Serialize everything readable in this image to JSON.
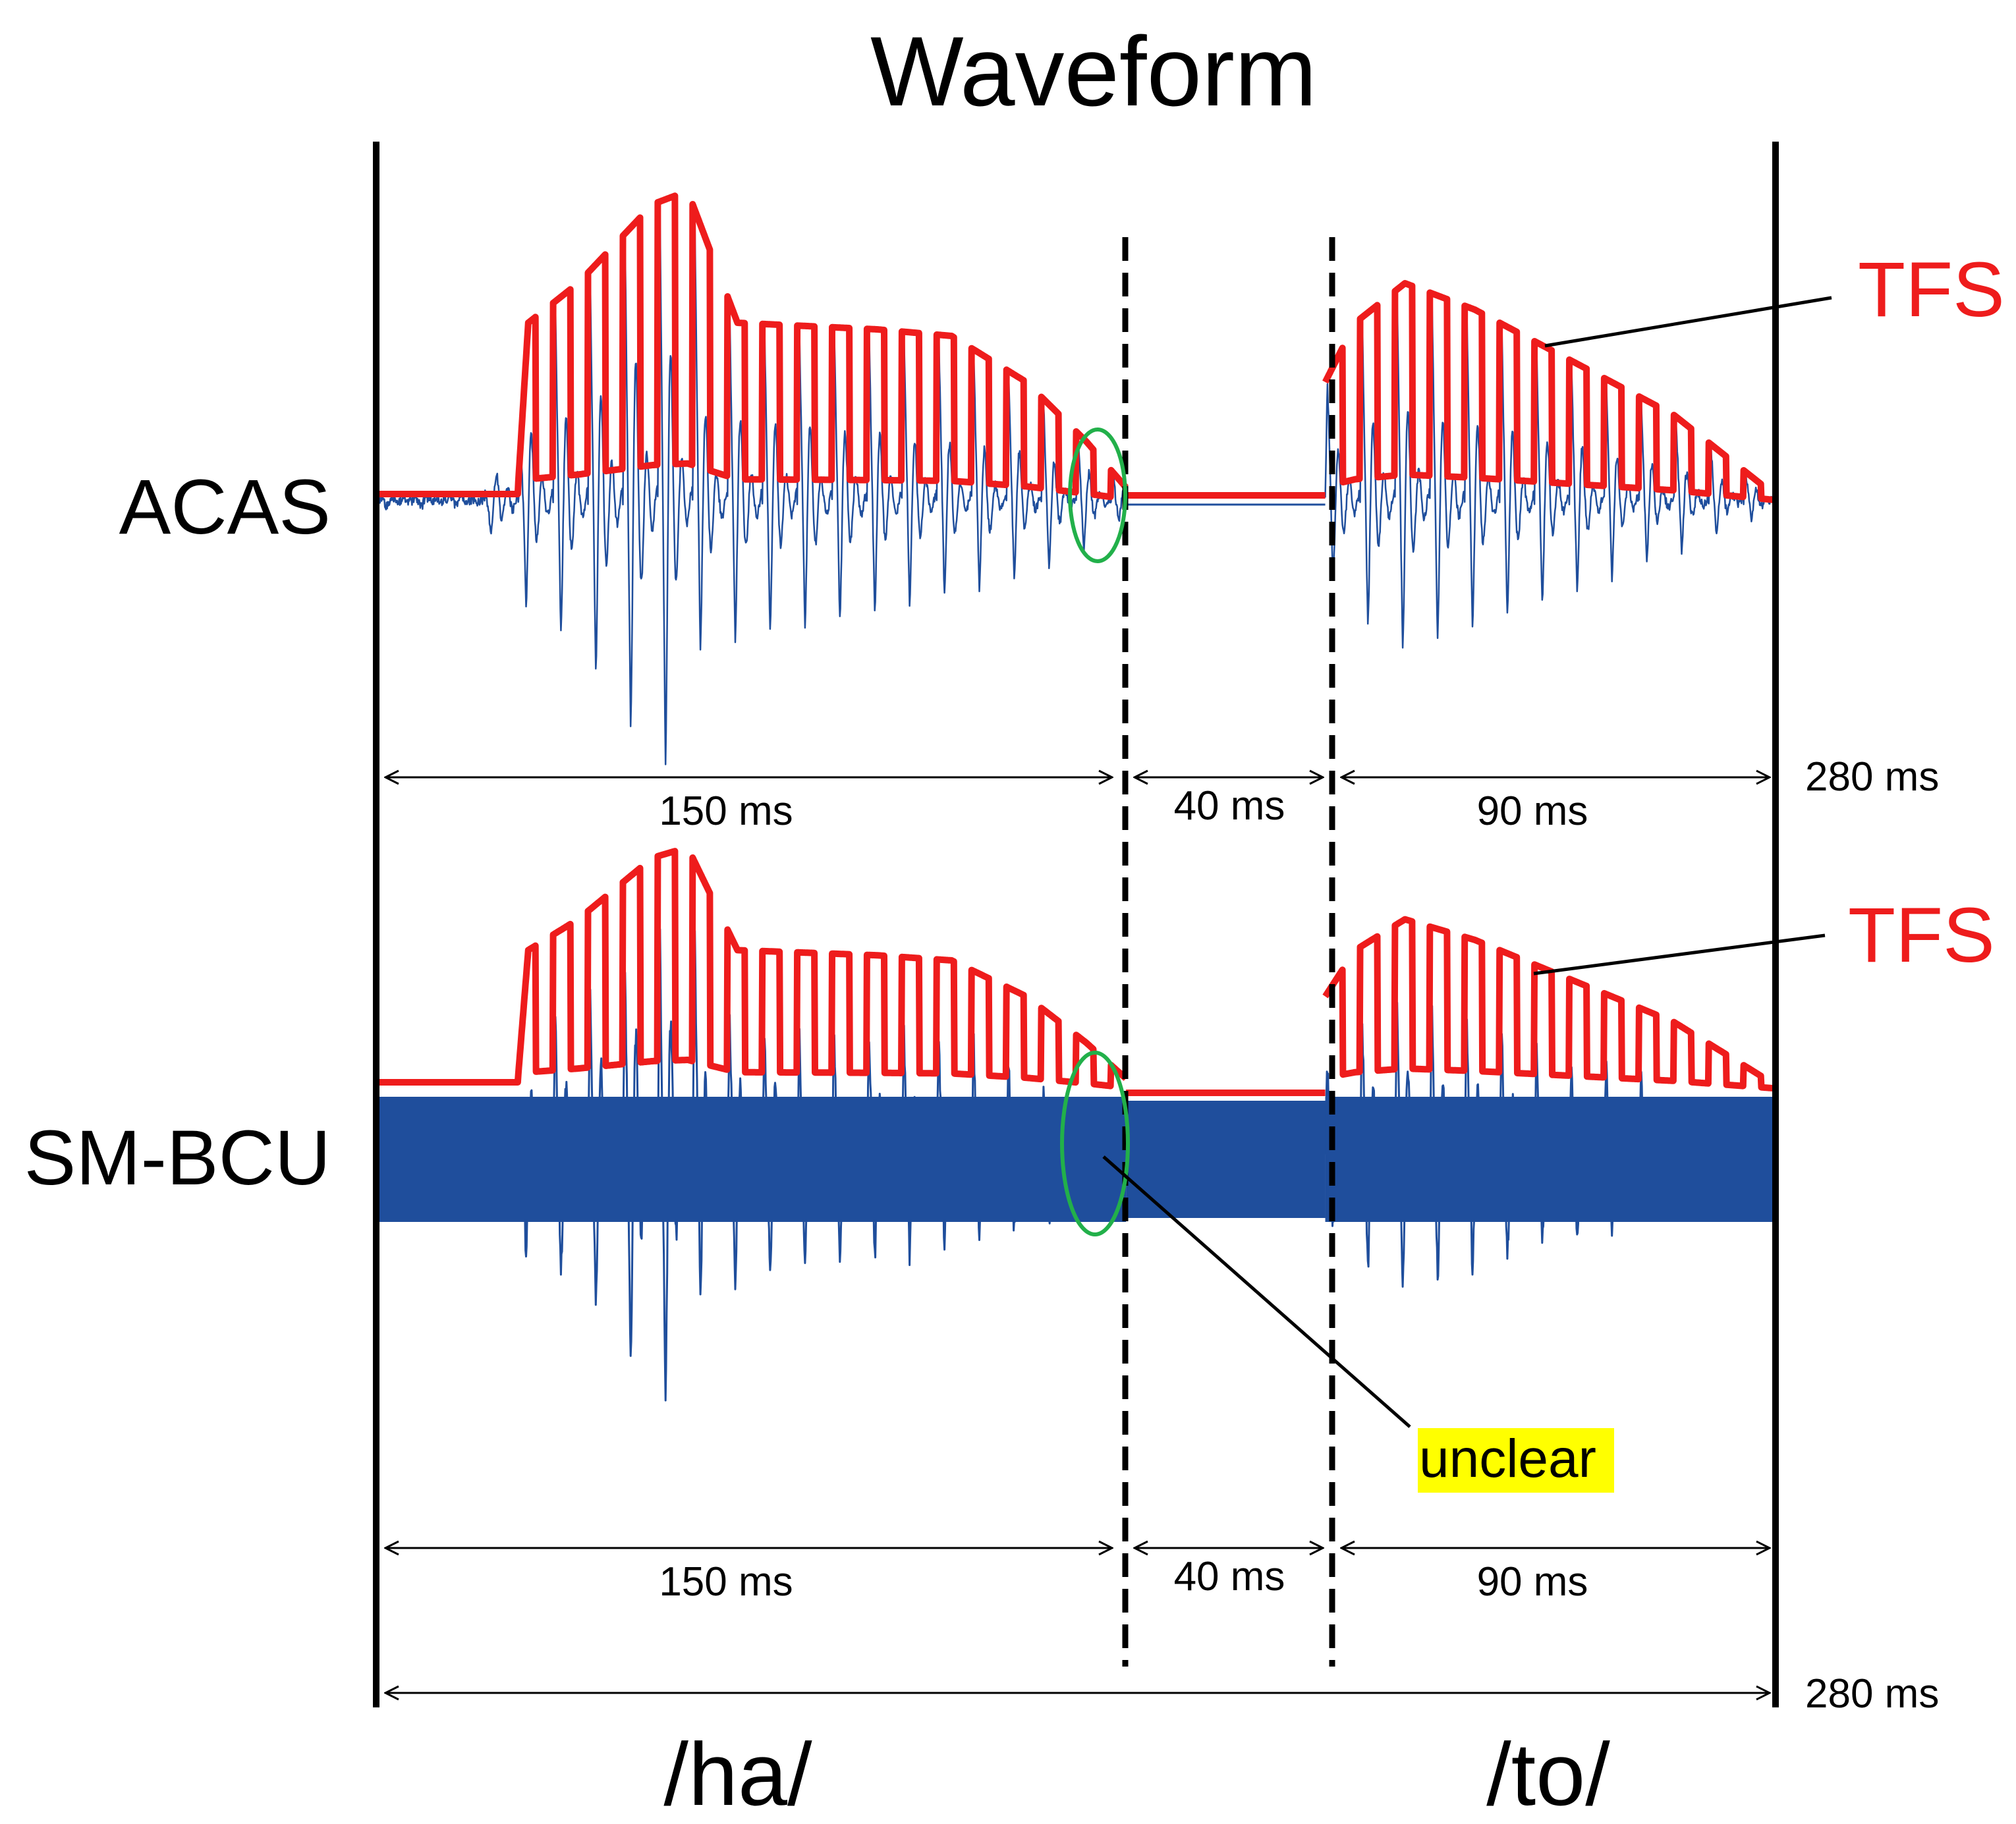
{
  "chart_data": {
    "type": "line",
    "title": "Waveform",
    "xlabel": "",
    "ylabel": "",
    "x_unit": "ms",
    "xlim": [
      0,
      280
    ],
    "total_duration_label": "280 ms",
    "segments": [
      {
        "start": 0,
        "end": 150,
        "label": "150 ms"
      },
      {
        "start": 150,
        "end": 190,
        "label": "40 ms"
      },
      {
        "start": 190,
        "end": 280,
        "label": "90 ms"
      }
    ],
    "boundaries": [
      150,
      190
    ],
    "syllables": [
      {
        "label": "/ha/",
        "start": 0,
        "end": 150
      },
      {
        "label": "/to/",
        "start": 190,
        "end": 280
      }
    ],
    "panels": [
      {
        "name": "ACAS",
        "series": [
          {
            "name": "Waveform",
            "color": "#1f4e9c"
          },
          {
            "name": "TFS",
            "color": "#ee1c1c"
          }
        ],
        "annotation": {
          "text": "TFS",
          "color": "#ee1c1c"
        },
        "highlight": {
          "at_ms": 146,
          "color": "#22b04a"
        }
      },
      {
        "name": "SM-BCU",
        "series": [
          {
            "name": "Waveform",
            "color": "#1f4e9c"
          },
          {
            "name": "TFS",
            "color": "#ee1c1c"
          }
        ],
        "annotation": {
          "text": "TFS",
          "color": "#ee1c1c"
        },
        "highlight": {
          "at_ms": 146,
          "color": "#22b04a"
        },
        "callout": {
          "text": "unclear",
          "background": "#ffff00"
        }
      }
    ]
  }
}
